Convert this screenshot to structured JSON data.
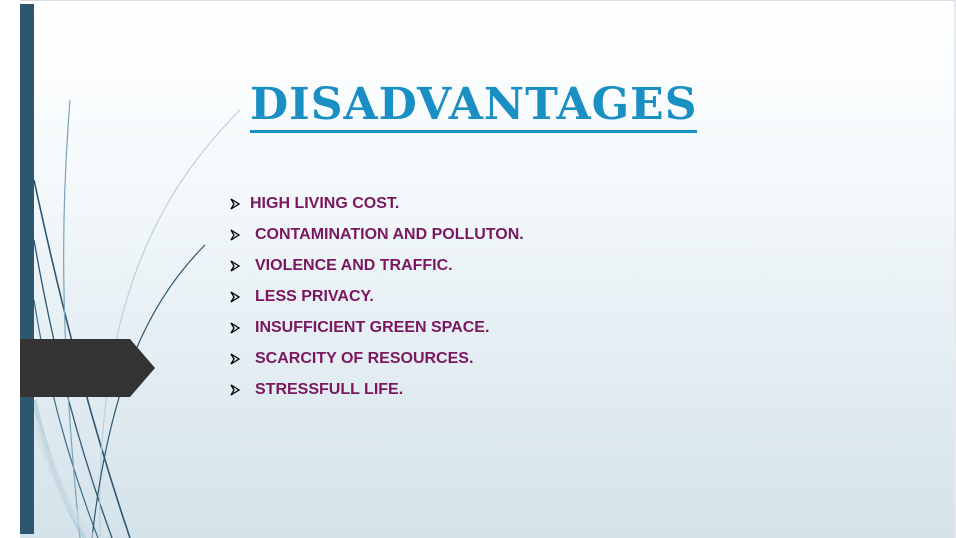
{
  "slide": {
    "title": "DISADVANTAGES",
    "bullet_icon": "arrow-bullet-icon",
    "bullets": [
      "HIGH LIVING COST.",
      "CONTAMINATION AND POLLUTON.",
      "VIOLENCE AND TRAFFIC.",
      "LESS PRIVACY.",
      "INSUFFICIENT GREEN SPACE.",
      "SCARCITY OF RESOURCES.",
      "STRESSFULL LIFE."
    ]
  },
  "colors": {
    "title": "#1a8fc4",
    "bullet_text": "#7a1760",
    "left_bar": "#2e5670",
    "arrow_tab": "#333333"
  }
}
